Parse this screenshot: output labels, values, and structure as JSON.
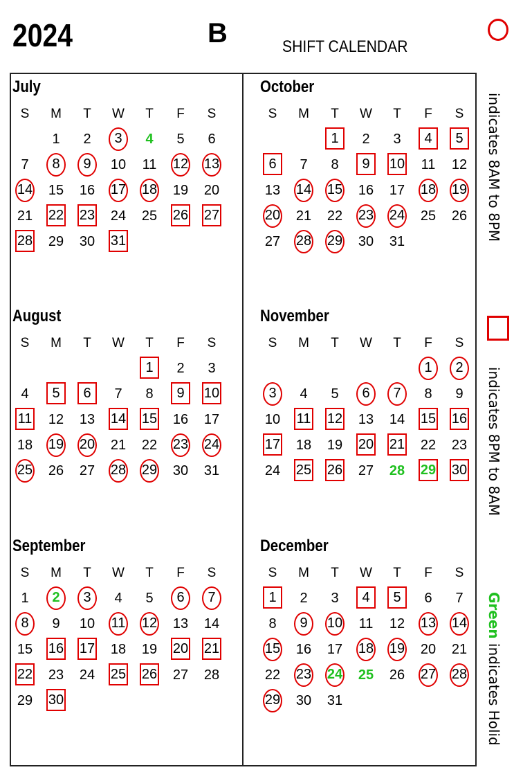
{
  "header": {
    "year": "2024",
    "letter": "B",
    "title": "SHIFT CALENDAR"
  },
  "weekday_labels": [
    "S",
    "M",
    "T",
    "W",
    "T",
    "F",
    "S"
  ],
  "legend": {
    "day_shift": "indicates 8AM to 8PM",
    "night_shift": "indicates 8PM to 8AM",
    "holiday_word": "Green",
    "holiday_rest": " indicates Holid",
    "colors": {
      "shift_mark": "#e00000",
      "holiday": "#1fc01f"
    }
  },
  "months": [
    {
      "name": "July",
      "start_weekday": 1,
      "days": 31,
      "circle": [
        3,
        8,
        9,
        12,
        13,
        14,
        17,
        18
      ],
      "square": [
        22,
        23,
        26,
        27,
        28,
        31
      ],
      "holiday": [
        4
      ]
    },
    {
      "name": "August",
      "start_weekday": 4,
      "days": 31,
      "circle": [
        19,
        20,
        23,
        24,
        25,
        28,
        29
      ],
      "square": [
        1,
        5,
        6,
        9,
        10,
        11,
        14,
        15
      ],
      "holiday": []
    },
    {
      "name": "September",
      "start_weekday": 0,
      "days": 30,
      "circle": [
        2,
        3,
        6,
        7,
        8,
        11,
        12
      ],
      "square": [
        16,
        17,
        20,
        21,
        22,
        25,
        26,
        30
      ],
      "holiday": [
        2
      ]
    },
    {
      "name": "October",
      "start_weekday": 2,
      "days": 31,
      "circle": [
        14,
        15,
        18,
        19,
        20,
        23,
        24,
        28,
        29
      ],
      "square": [
        1,
        4,
        5,
        6,
        9,
        10
      ],
      "holiday": []
    },
    {
      "name": "November",
      "start_weekday": 5,
      "days": 30,
      "circle": [
        1,
        2,
        3,
        6,
        7
      ],
      "square": [
        11,
        12,
        15,
        16,
        17,
        20,
        21,
        25,
        26,
        29,
        30
      ],
      "holiday": [
        28,
        29
      ]
    },
    {
      "name": "December",
      "start_weekday": 0,
      "days": 31,
      "circle": [
        9,
        10,
        13,
        14,
        15,
        18,
        19,
        23,
        24,
        27,
        28,
        29
      ],
      "square": [
        1,
        4,
        5
      ],
      "holiday": [
        24,
        25
      ]
    }
  ]
}
